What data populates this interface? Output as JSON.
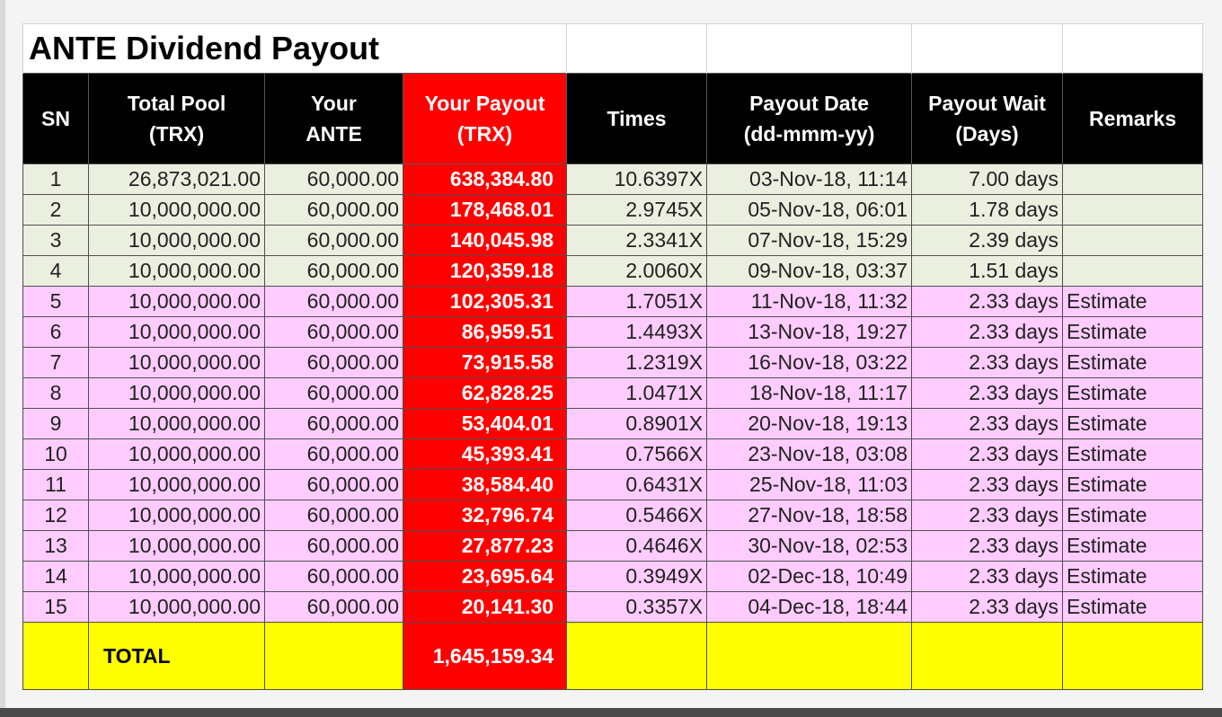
{
  "title": "ANTE Dividend Payout",
  "headers": {
    "sn": "SN",
    "total_pool_1": "Total Pool",
    "total_pool_2": "(TRX)",
    "your_ante_1": "Your",
    "your_ante_2": "ANTE",
    "your_payout_1": "Your Payout",
    "your_payout_2": "(TRX)",
    "times": "Times",
    "payout_date_1": "Payout Date",
    "payout_date_2": "(dd-mmm-yy)",
    "payout_wait_1": "Payout Wait",
    "payout_wait_2": "(Days)",
    "remarks": "Remarks"
  },
  "rows": [
    {
      "sn": "1",
      "pool": "26,873,021.00",
      "ante": "60,000.00",
      "payout": "638,384.80",
      "times": "10.6397X",
      "date": "03-Nov-18, 11:14",
      "wait": "7.00 days",
      "remarks": ""
    },
    {
      "sn": "2",
      "pool": "10,000,000.00",
      "ante": "60,000.00",
      "payout": "178,468.01",
      "times": "2.9745X",
      "date": "05-Nov-18, 06:01",
      "wait": "1.78 days",
      "remarks": ""
    },
    {
      "sn": "3",
      "pool": "10,000,000.00",
      "ante": "60,000.00",
      "payout": "140,045.98",
      "times": "2.3341X",
      "date": "07-Nov-18, 15:29",
      "wait": "2.39 days",
      "remarks": ""
    },
    {
      "sn": "4",
      "pool": "10,000,000.00",
      "ante": "60,000.00",
      "payout": "120,359.18",
      "times": "2.0060X",
      "date": "09-Nov-18, 03:37",
      "wait": "1.51 days",
      "remarks": ""
    },
    {
      "sn": "5",
      "pool": "10,000,000.00",
      "ante": "60,000.00",
      "payout": "102,305.31",
      "times": "1.7051X",
      "date": "11-Nov-18, 11:32",
      "wait": "2.33 days",
      "remarks": "Estimate"
    },
    {
      "sn": "6",
      "pool": "10,000,000.00",
      "ante": "60,000.00",
      "payout": "86,959.51",
      "times": "1.4493X",
      "date": "13-Nov-18, 19:27",
      "wait": "2.33 days",
      "remarks": "Estimate"
    },
    {
      "sn": "7",
      "pool": "10,000,000.00",
      "ante": "60,000.00",
      "payout": "73,915.58",
      "times": "1.2319X",
      "date": "16-Nov-18, 03:22",
      "wait": "2.33 days",
      "remarks": "Estimate"
    },
    {
      "sn": "8",
      "pool": "10,000,000.00",
      "ante": "60,000.00",
      "payout": "62,828.25",
      "times": "1.0471X",
      "date": "18-Nov-18, 11:17",
      "wait": "2.33 days",
      "remarks": "Estimate"
    },
    {
      "sn": "9",
      "pool": "10,000,000.00",
      "ante": "60,000.00",
      "payout": "53,404.01",
      "times": "0.8901X",
      "date": "20-Nov-18, 19:13",
      "wait": "2.33 days",
      "remarks": "Estimate"
    },
    {
      "sn": "10",
      "pool": "10,000,000.00",
      "ante": "60,000.00",
      "payout": "45,393.41",
      "times": "0.7566X",
      "date": "23-Nov-18, 03:08",
      "wait": "2.33 days",
      "remarks": "Estimate"
    },
    {
      "sn": "11",
      "pool": "10,000,000.00",
      "ante": "60,000.00",
      "payout": "38,584.40",
      "times": "0.6431X",
      "date": "25-Nov-18, 11:03",
      "wait": "2.33 days",
      "remarks": "Estimate"
    },
    {
      "sn": "12",
      "pool": "10,000,000.00",
      "ante": "60,000.00",
      "payout": "32,796.74",
      "times": "0.5466X",
      "date": "27-Nov-18, 18:58",
      "wait": "2.33 days",
      "remarks": "Estimate"
    },
    {
      "sn": "13",
      "pool": "10,000,000.00",
      "ante": "60,000.00",
      "payout": "27,877.23",
      "times": "0.4646X",
      "date": "30-Nov-18, 02:53",
      "wait": "2.33 days",
      "remarks": "Estimate"
    },
    {
      "sn": "14",
      "pool": "10,000,000.00",
      "ante": "60,000.00",
      "payout": "23,695.64",
      "times": "0.3949X",
      "date": "02-Dec-18, 10:49",
      "wait": "2.33 days",
      "remarks": "Estimate"
    },
    {
      "sn": "15",
      "pool": "10,000,000.00",
      "ante": "60,000.00",
      "payout": "20,141.30",
      "times": "0.3357X",
      "date": "04-Dec-18, 18:44",
      "wait": "2.33 days",
      "remarks": "Estimate"
    }
  ],
  "total": {
    "label": "TOTAL",
    "payout": "1,645,159.34"
  },
  "colors": {
    "header_bg": "#000000",
    "payout_red": "#ff0000",
    "actual_row_bg": "#ebefe0",
    "estimate_row_bg": "#ffccff",
    "total_row_bg": "#ffff00"
  }
}
